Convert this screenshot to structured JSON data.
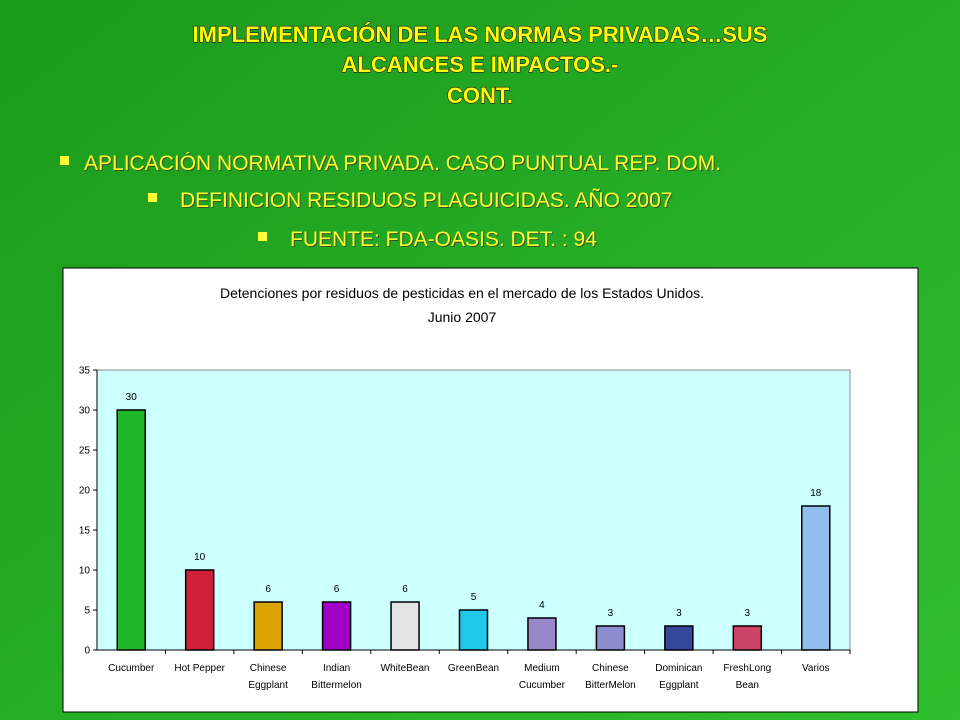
{
  "slide": {
    "title": [
      "IMPLEMENTACIÓN DE LAS NORMAS PRIVADAS…SUS",
      "ALCANCES E IMPACTOS.-",
      "CONT."
    ],
    "bullets": [
      "APLICACIÓN NORMATIVA PRIVADA.  CASO PUNTUAL REP. DOM.",
      "DEFINICION RESIDUOS PLAGUICIDAS.  AÑO 2007",
      "FUENTE:  FDA-OASIS.  DET. :  94"
    ]
  },
  "chart_data": {
    "type": "bar",
    "title": [
      "Detenciones por residuos de pesticidas en el mercado de los Estados Unidos.",
      "Junio 2007"
    ],
    "categories": [
      [
        "Cucumber"
      ],
      [
        "Hot Pepper"
      ],
      [
        "Chinese",
        "Eggplant"
      ],
      [
        "Indian",
        "Bittermelon"
      ],
      [
        "WhiteBean"
      ],
      [
        "GreenBean"
      ],
      [
        "Medium",
        "Cucumber"
      ],
      [
        "Chinese",
        "BitterMelon"
      ],
      [
        "Dominican",
        "Eggplant"
      ],
      [
        "FreshLong",
        "Bean"
      ],
      [
        "Varios"
      ]
    ],
    "values": [
      30,
      10,
      6,
      6,
      6,
      5,
      4,
      3,
      3,
      3,
      18
    ],
    "colors": [
      "#1fb82a",
      "#d0203a",
      "#d9a300",
      "#a000c8",
      "#e4e4e4",
      "#1fc8ea",
      "#9a88cc",
      "#8c8cd0",
      "#34479a",
      "#cc4466",
      "#8fbdec"
    ],
    "ylim": [
      0,
      35
    ],
    "yticks": [
      0,
      5,
      10,
      15,
      20,
      25,
      30,
      35
    ]
  }
}
